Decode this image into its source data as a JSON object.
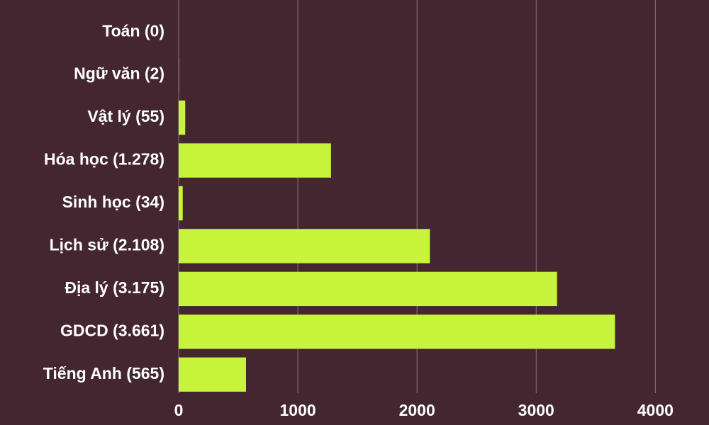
{
  "chart_data": {
    "type": "bar",
    "orientation": "horizontal",
    "categories": [
      "Toán (0)",
      "Ngữ văn (2)",
      "Vật lý (55)",
      "Hóa học (1.278)",
      "Sinh học (34)",
      "Lịch sử (2.108)",
      "Địa lý (3.175)",
      "GDCD (3.661)",
      "Tiếng Anh (565)"
    ],
    "values": [
      0,
      2,
      55,
      1278,
      34,
      2108,
      3175,
      3661,
      565
    ],
    "color": "#c8f53c",
    "xlim": [
      0,
      4450
    ],
    "xticks": [
      0,
      1000,
      2000,
      3000,
      4000
    ],
    "grid": true
  }
}
